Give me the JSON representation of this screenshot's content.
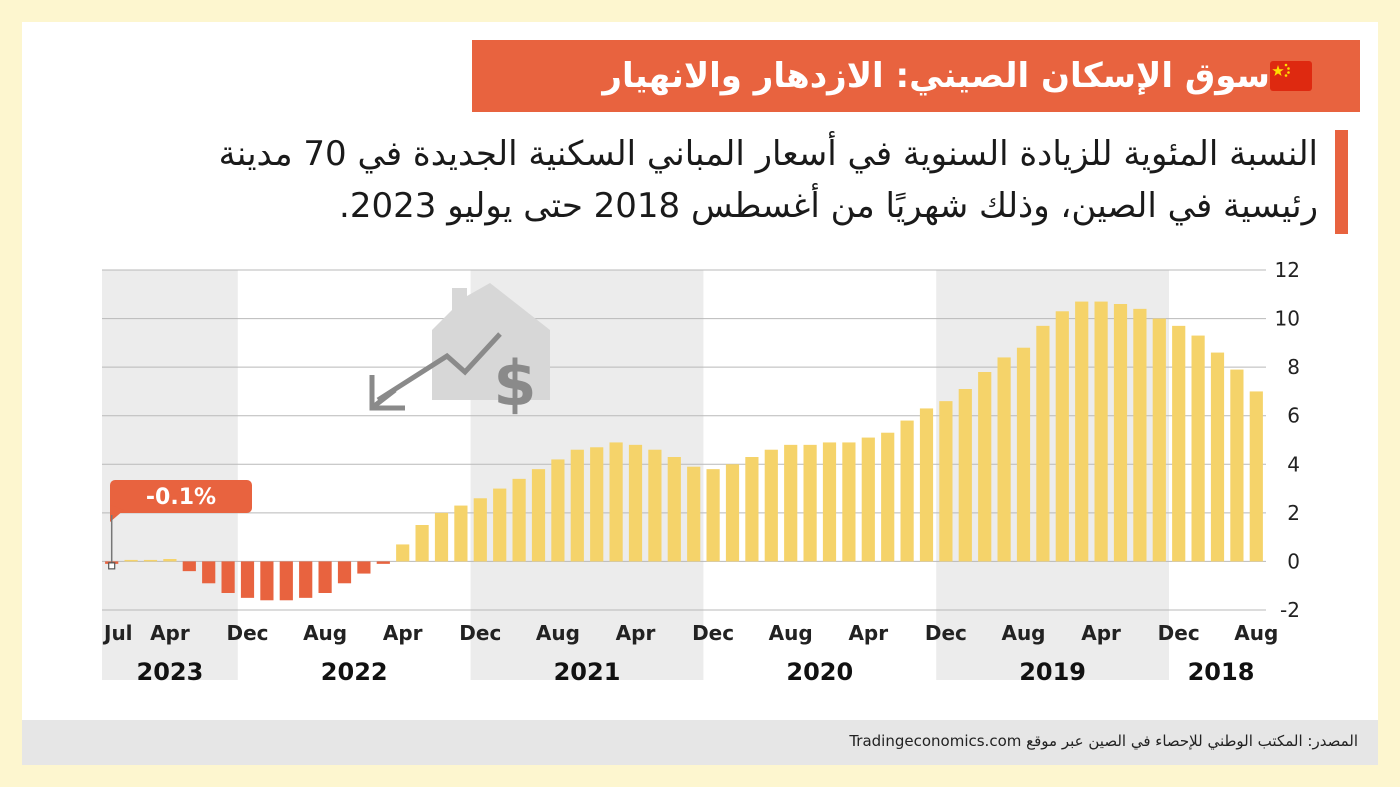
{
  "header": {
    "title": "سوق الإسكان الصيني: الازدهار والانهيار",
    "flag_icon": "china-flag-icon"
  },
  "subtitle": "النسبة المئوية للزيادة السنوية في أسعار المباني السكنية الجديدة في 70 مدينة رئيسية في الصين، وذلك شهريًا من أغسطس 2018 حتى يوليو 2023.",
  "footer": {
    "source": "المصدر: المكتب الوطني للإحصاء في الصين عبر موقع Tradingeconomics.com"
  },
  "colors": {
    "accent": "#e8633f",
    "positive_bar": "#f5d36a",
    "negative_bar": "#e8633f",
    "band": "#ececec",
    "background": "#fdf6cf"
  },
  "chart_data": {
    "type": "bar",
    "title": "",
    "xlabel": "",
    "ylabel": "",
    "ylim": [
      -2,
      12
    ],
    "yticks": [
      12,
      10,
      8,
      6,
      4,
      2,
      0,
      -2
    ],
    "ytick_labels": [
      "12",
      "10",
      "8",
      "6",
      "4",
      "2",
      "0",
      "-2"
    ],
    "period_order": "oldest on the right, newest on the left",
    "categories": [
      "2018-08",
      "2018-09",
      "2018-10",
      "2018-11",
      "2018-12",
      "2019-01",
      "2019-02",
      "2019-03",
      "2019-04",
      "2019-05",
      "2019-06",
      "2019-07",
      "2019-08",
      "2019-09",
      "2019-10",
      "2019-11",
      "2019-12",
      "2020-01",
      "2020-02",
      "2020-03",
      "2020-04",
      "2020-05",
      "2020-06",
      "2020-07",
      "2020-08",
      "2020-09",
      "2020-10",
      "2020-11",
      "2020-12",
      "2021-01",
      "2021-02",
      "2021-03",
      "2021-04",
      "2021-05",
      "2021-06",
      "2021-07",
      "2021-08",
      "2021-09",
      "2021-10",
      "2021-11",
      "2021-12",
      "2022-01",
      "2022-02",
      "2022-03",
      "2022-04",
      "2022-05",
      "2022-06",
      "2022-07",
      "2022-08",
      "2022-09",
      "2022-10",
      "2022-11",
      "2022-12",
      "2023-01",
      "2023-02",
      "2023-03",
      "2023-04",
      "2023-05",
      "2023-06",
      "2023-07"
    ],
    "values": [
      7.0,
      7.9,
      8.6,
      9.3,
      9.7,
      10.0,
      10.4,
      10.6,
      10.7,
      10.7,
      10.3,
      9.7,
      8.8,
      8.4,
      7.8,
      7.1,
      6.6,
      6.3,
      5.8,
      5.3,
      5.1,
      4.9,
      4.9,
      4.8,
      4.8,
      4.6,
      4.3,
      4.0,
      3.8,
      3.9,
      4.3,
      4.6,
      4.8,
      4.9,
      4.7,
      4.6,
      4.2,
      3.8,
      3.4,
      3.0,
      2.6,
      2.3,
      2.0,
      1.5,
      0.7,
      -0.1,
      -0.5,
      -0.9,
      -1.3,
      -1.5,
      -1.6,
      -1.6,
      -1.5,
      -1.3,
      -0.9,
      -0.4,
      0.1,
      0.0,
      0.0,
      -0.1
    ],
    "x_tick_labels": [
      {
        "label": "Aug",
        "index": 0
      },
      {
        "label": "Dec",
        "index": 4
      },
      {
        "label": "Apr",
        "index": 8
      },
      {
        "label": "Aug",
        "index": 12
      },
      {
        "label": "Dec",
        "index": 16
      },
      {
        "label": "Apr",
        "index": 20
      },
      {
        "label": "Aug",
        "index": 24
      },
      {
        "label": "Dec",
        "index": 28
      },
      {
        "label": "Apr",
        "index": 32
      },
      {
        "label": "Aug",
        "index": 36
      },
      {
        "label": "Dec",
        "index": 40
      },
      {
        "label": "Apr",
        "index": 44
      },
      {
        "label": "Aug",
        "index": 48
      },
      {
        "label": "Dec",
        "index": 52
      },
      {
        "label": "Apr",
        "index": 56
      },
      {
        "label": "Jul",
        "index": 59
      }
    ],
    "years": [
      {
        "label": "2018",
        "start": 0,
        "end": 4,
        "shaded": false
      },
      {
        "label": "2019",
        "start": 5,
        "end": 16,
        "shaded": true
      },
      {
        "label": "2020",
        "start": 17,
        "end": 28,
        "shaded": false
      },
      {
        "label": "2021",
        "start": 29,
        "end": 40,
        "shaded": true
      },
      {
        "label": "2022",
        "start": 41,
        "end": 52,
        "shaded": false
      },
      {
        "label": "2023",
        "start": 53,
        "end": 59,
        "shaded": true
      }
    ],
    "annotation": {
      "text": "-0.1%",
      "index": 59,
      "value": -0.1
    }
  }
}
